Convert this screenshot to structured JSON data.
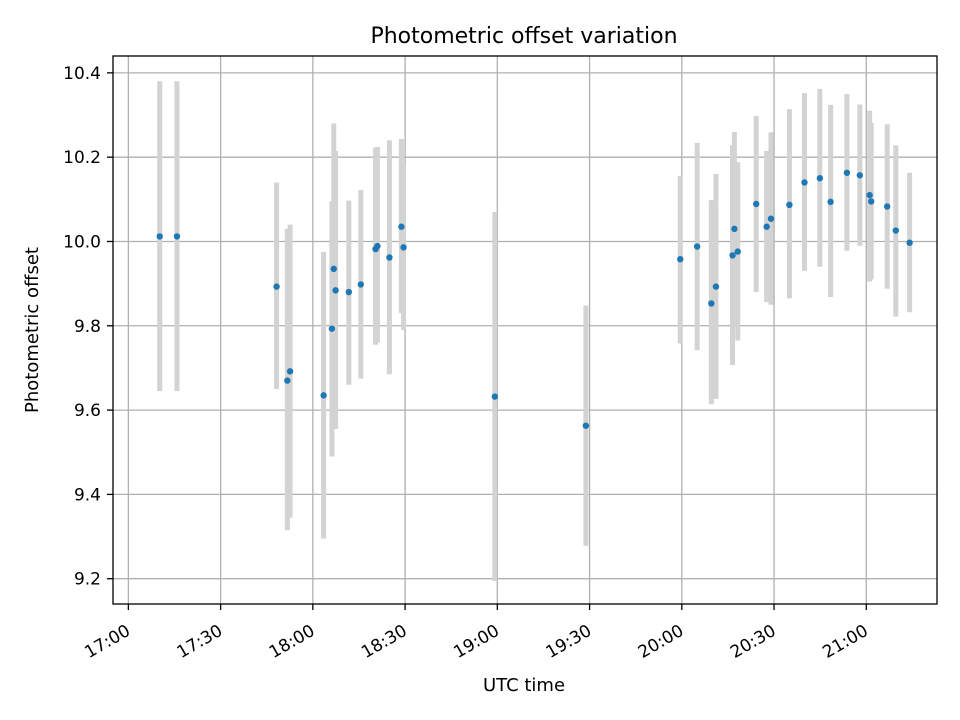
{
  "chart_data": {
    "type": "scatter",
    "title": "Photometric offset variation",
    "xlabel": "UTC time",
    "ylabel": "Photometric offset",
    "grid": true,
    "x_unit": "minutes after 17:00 UTC",
    "xlim": [
      -5,
      263
    ],
    "ylim": [
      9.14,
      10.44
    ],
    "x_ticks": [
      {
        "value": 0,
        "label": "17:00"
      },
      {
        "value": 30,
        "label": "17:30"
      },
      {
        "value": 60,
        "label": "18:00"
      },
      {
        "value": 90,
        "label": "18:30"
      },
      {
        "value": 120,
        "label": "19:00"
      },
      {
        "value": 150,
        "label": "19:30"
      },
      {
        "value": 180,
        "label": "20:00"
      },
      {
        "value": 210,
        "label": "20:30"
      },
      {
        "value": 240,
        "label": "21:00"
      }
    ],
    "y_ticks": [
      {
        "value": 9.2,
        "label": "9.2"
      },
      {
        "value": 9.4,
        "label": "9.4"
      },
      {
        "value": 9.6,
        "label": "9.6"
      },
      {
        "value": 9.8,
        "label": "9.8"
      },
      {
        "value": 10.0,
        "label": "10.0"
      },
      {
        "value": 10.2,
        "label": "10.2"
      },
      {
        "value": 10.4,
        "label": "10.4"
      }
    ],
    "series": [
      {
        "name": "photometric offset",
        "point_color": "#1f77b4",
        "errorbar_color": "#d3d3d3",
        "points": [
          {
            "x": 10.2,
            "y": 10.012,
            "lo": 9.645,
            "hi": 10.38
          },
          {
            "x": 15.8,
            "y": 10.012,
            "lo": 9.645,
            "hi": 10.38
          },
          {
            "x": 48.2,
            "y": 9.893,
            "lo": 9.65,
            "hi": 10.14
          },
          {
            "x": 51.7,
            "y": 9.67,
            "lo": 9.315,
            "hi": 10.03
          },
          {
            "x": 52.6,
            "y": 9.692,
            "lo": 9.345,
            "hi": 10.04
          },
          {
            "x": 63.5,
            "y": 9.635,
            "lo": 9.295,
            "hi": 9.975
          },
          {
            "x": 66.2,
            "y": 9.793,
            "lo": 9.49,
            "hi": 10.095
          },
          {
            "x": 66.8,
            "y": 9.935,
            "lo": 9.59,
            "hi": 10.28
          },
          {
            "x": 67.4,
            "y": 9.884,
            "lo": 9.555,
            "hi": 10.215
          },
          {
            "x": 71.7,
            "y": 9.88,
            "lo": 9.66,
            "hi": 10.097
          },
          {
            "x": 75.6,
            "y": 9.898,
            "lo": 9.675,
            "hi": 10.122
          },
          {
            "x": 80.4,
            "y": 9.982,
            "lo": 9.755,
            "hi": 10.222
          },
          {
            "x": 81.0,
            "y": 9.989,
            "lo": 9.76,
            "hi": 10.224
          },
          {
            "x": 84.9,
            "y": 9.962,
            "lo": 9.685,
            "hi": 10.24
          },
          {
            "x": 88.8,
            "y": 10.035,
            "lo": 9.83,
            "hi": 10.243
          },
          {
            "x": 89.5,
            "y": 9.986,
            "lo": 9.79,
            "hi": 10.18
          },
          {
            "x": 119.2,
            "y": 9.632,
            "lo": 9.195,
            "hi": 10.07
          },
          {
            "x": 148.8,
            "y": 9.563,
            "lo": 9.278,
            "hi": 9.848
          },
          {
            "x": 179.5,
            "y": 9.958,
            "lo": 9.758,
            "hi": 10.155
          },
          {
            "x": 185.0,
            "y": 9.988,
            "lo": 9.742,
            "hi": 10.234
          },
          {
            "x": 189.6,
            "y": 9.853,
            "lo": 9.614,
            "hi": 10.098
          },
          {
            "x": 191.1,
            "y": 9.893,
            "lo": 9.627,
            "hi": 10.16
          },
          {
            "x": 196.5,
            "y": 9.967,
            "lo": 9.707,
            "hi": 10.228
          },
          {
            "x": 197.1,
            "y": 10.03,
            "lo": 9.8,
            "hi": 10.26
          },
          {
            "x": 198.2,
            "y": 9.976,
            "lo": 9.765,
            "hi": 10.188
          },
          {
            "x": 204.2,
            "y": 10.089,
            "lo": 9.88,
            "hi": 10.298
          },
          {
            "x": 207.6,
            "y": 10.035,
            "lo": 9.856,
            "hi": 10.215
          },
          {
            "x": 209.0,
            "y": 10.054,
            "lo": 9.85,
            "hi": 10.259
          },
          {
            "x": 215.0,
            "y": 10.087,
            "lo": 9.865,
            "hi": 10.314
          },
          {
            "x": 219.9,
            "y": 10.14,
            "lo": 9.93,
            "hi": 10.352
          },
          {
            "x": 224.9,
            "y": 10.15,
            "lo": 9.94,
            "hi": 10.362
          },
          {
            "x": 228.4,
            "y": 10.094,
            "lo": 9.868,
            "hi": 10.324
          },
          {
            "x": 233.7,
            "y": 10.163,
            "lo": 9.978,
            "hi": 10.35
          },
          {
            "x": 237.9,
            "y": 10.157,
            "lo": 9.99,
            "hi": 10.325
          },
          {
            "x": 241.1,
            "y": 10.11,
            "lo": 9.905,
            "hi": 10.31
          },
          {
            "x": 241.6,
            "y": 10.095,
            "lo": 9.91,
            "hi": 10.281
          },
          {
            "x": 246.8,
            "y": 10.083,
            "lo": 9.888,
            "hi": 10.278
          },
          {
            "x": 249.6,
            "y": 10.026,
            "lo": 9.822,
            "hi": 10.228
          },
          {
            "x": 254.1,
            "y": 9.997,
            "lo": 9.832,
            "hi": 10.163
          }
        ]
      }
    ]
  }
}
